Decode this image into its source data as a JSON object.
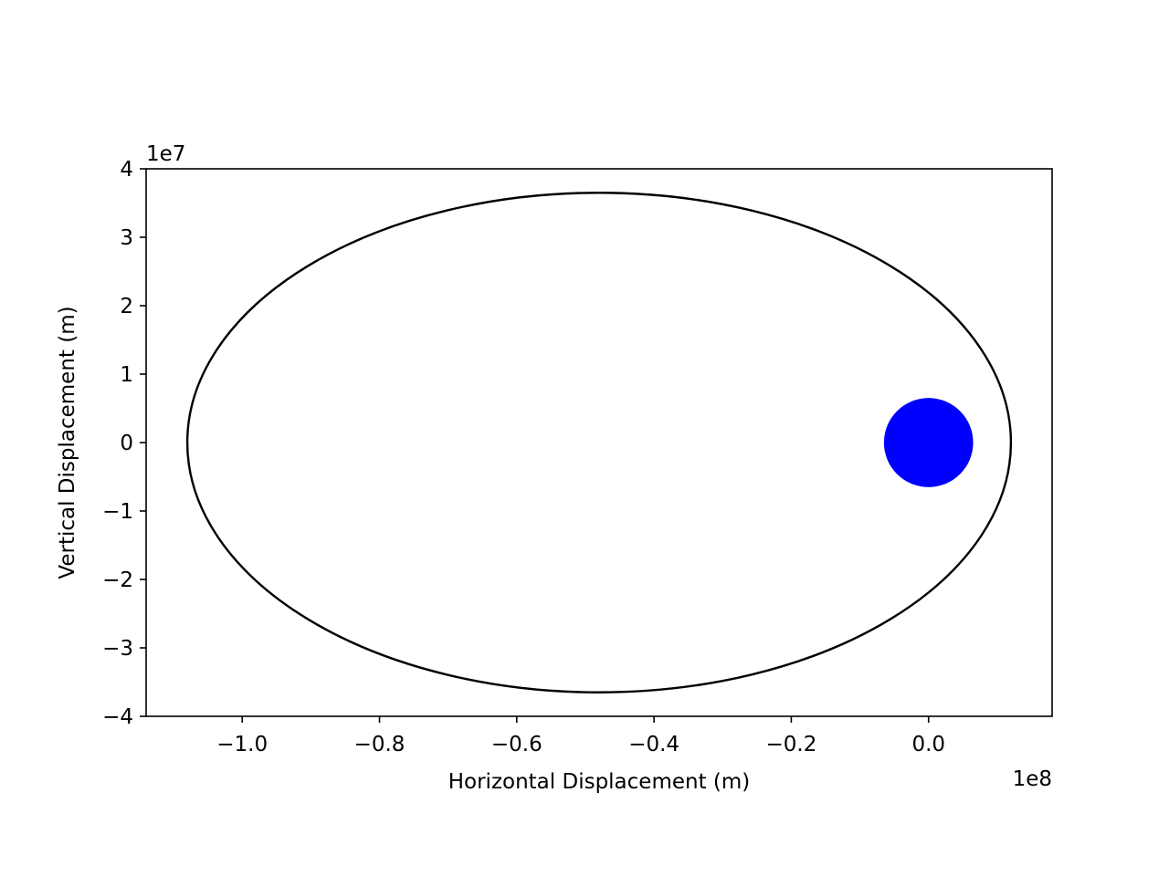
{
  "chart_data": {
    "type": "scatter",
    "title": "",
    "xlabel": "Horizontal Displacement (m)",
    "ylabel": "Vertical Displacement (m)",
    "x_offset_text": "1e8",
    "y_offset_text": "1e7",
    "xlim": [
      -1.14,
      0.18
    ],
    "ylim": [
      -4,
      4
    ],
    "x_ticks": [
      -1.0,
      -0.8,
      -0.6,
      -0.4,
      -0.2,
      0.0
    ],
    "x_tick_labels": [
      "−1.0",
      "−0.8",
      "−0.6",
      "−0.4",
      "−0.2",
      "0.0"
    ],
    "y_ticks": [
      4,
      3,
      2,
      1,
      0,
      -1,
      -2,
      -3,
      -4
    ],
    "y_tick_labels": [
      "4",
      "3",
      "2",
      "1",
      "0",
      "−1",
      "−2",
      "−3",
      "−4"
    ],
    "grid": false,
    "series": [
      {
        "kind": "orbit-ellipse",
        "color": "#000000",
        "center_x": -0.48,
        "center_y": 0,
        "semi_axis_x": 0.6,
        "semi_axis_y": 3.65
      },
      {
        "kind": "central-body",
        "color": "#0000ff",
        "x": 0.0,
        "y": 0.0,
        "radius_x": 0.065
      }
    ]
  }
}
